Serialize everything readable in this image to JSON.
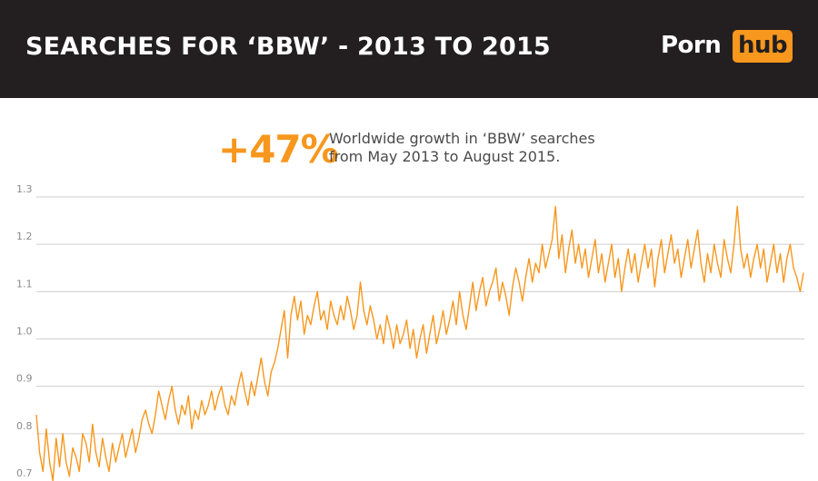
{
  "header": {
    "title": "SEARCHES FOR ‘BBW’ - 2013 TO 2015",
    "logo_porn": "Porn",
    "logo_hub": "hub"
  },
  "highlight": {
    "value": "+47%",
    "line1": "Worldwide growth in ‘BBW’ searches",
    "line2": "from May 2013 to August 2015."
  },
  "colors": {
    "header_bg": "#231f20",
    "accent": "#f7971d",
    "grid": "#cfcfcf",
    "tick_text": "#8a8a8a"
  },
  "chart_data": {
    "type": "line",
    "title": "SEARCHES FOR ‘BBW’ - 2013 TO 2015",
    "xlabel": "",
    "ylabel": "",
    "ylim": [
      0.7,
      1.3
    ],
    "yticks": [
      0.7,
      0.8,
      0.9,
      1.0,
      1.1,
      1.2,
      1.3
    ],
    "ytick_labels": [
      "0.7",
      "0.8",
      "0.9",
      "1.0",
      "1.1",
      "1.2",
      "1.3"
    ],
    "grid": true,
    "series": [
      {
        "values": [
          0.84,
          0.76,
          0.72,
          0.81,
          0.74,
          0.7,
          0.79,
          0.73,
          0.8,
          0.74,
          0.71,
          0.77,
          0.75,
          0.72,
          0.8,
          0.78,
          0.74,
          0.82,
          0.76,
          0.73,
          0.79,
          0.75,
          0.72,
          0.78,
          0.74,
          0.77,
          0.8,
          0.75,
          0.78,
          0.81,
          0.76,
          0.79,
          0.83,
          0.85,
          0.82,
          0.8,
          0.84,
          0.89,
          0.86,
          0.83,
          0.87,
          0.9,
          0.85,
          0.82,
          0.86,
          0.84,
          0.88,
          0.81,
          0.85,
          0.83,
          0.87,
          0.84,
          0.86,
          0.89,
          0.85,
          0.88,
          0.9,
          0.86,
          0.84,
          0.88,
          0.86,
          0.9,
          0.93,
          0.89,
          0.86,
          0.91,
          0.88,
          0.92,
          0.96,
          0.91,
          0.88,
          0.93,
          0.95,
          0.98,
          1.02,
          1.06,
          0.96,
          1.05,
          1.09,
          1.04,
          1.08,
          1.01,
          1.05,
          1.03,
          1.07,
          1.1,
          1.04,
          1.06,
          1.02,
          1.08,
          1.05,
          1.03,
          1.07,
          1.04,
          1.09,
          1.06,
          1.02,
          1.05,
          1.12,
          1.06,
          1.03,
          1.07,
          1.04,
          1.0,
          1.03,
          0.99,
          1.05,
          1.02,
          0.98,
          1.03,
          0.99,
          1.01,
          1.04,
          0.98,
          1.02,
          0.96,
          1.0,
          1.03,
          0.97,
          1.01,
          1.05,
          0.99,
          1.02,
          1.06,
          1.01,
          1.04,
          1.08,
          1.03,
          1.1,
          1.05,
          1.02,
          1.07,
          1.12,
          1.06,
          1.1,
          1.13,
          1.07,
          1.1,
          1.12,
          1.15,
          1.08,
          1.12,
          1.09,
          1.05,
          1.11,
          1.15,
          1.12,
          1.08,
          1.13,
          1.17,
          1.12,
          1.16,
          1.14,
          1.2,
          1.15,
          1.18,
          1.21,
          1.28,
          1.17,
          1.22,
          1.14,
          1.19,
          1.23,
          1.16,
          1.2,
          1.15,
          1.19,
          1.13,
          1.17,
          1.21,
          1.14,
          1.18,
          1.12,
          1.16,
          1.2,
          1.13,
          1.17,
          1.1,
          1.15,
          1.19,
          1.14,
          1.18,
          1.12,
          1.16,
          1.2,
          1.15,
          1.19,
          1.11,
          1.17,
          1.21,
          1.14,
          1.18,
          1.22,
          1.16,
          1.19,
          1.13,
          1.17,
          1.21,
          1.15,
          1.19,
          1.23,
          1.16,
          1.12,
          1.18,
          1.14,
          1.2,
          1.16,
          1.13,
          1.21,
          1.17,
          1.14,
          1.2,
          1.28,
          1.19,
          1.15,
          1.18,
          1.13,
          1.17,
          1.2,
          1.15,
          1.19,
          1.12,
          1.16,
          1.2,
          1.14,
          1.18,
          1.12,
          1.17,
          1.2,
          1.15,
          1.13,
          1.1,
          1.14
        ]
      }
    ]
  }
}
